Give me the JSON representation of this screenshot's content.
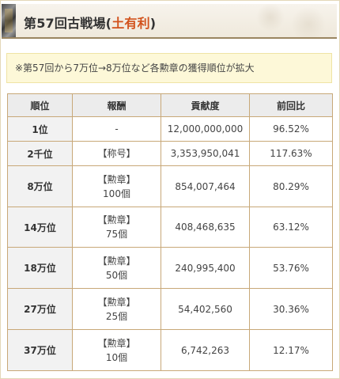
{
  "heading": {
    "title_prefix": "第57回古戦場(",
    "title_accent": "土有利",
    "title_suffix": ")"
  },
  "notice": {
    "text": "※第57回から7万位→8万位など各勲章の獲得順位が拡大"
  },
  "table": {
    "headers": [
      "順位",
      "報酬",
      "貢献度",
      "前回比"
    ],
    "rows": [
      {
        "rank": "1位",
        "reward_line1": "-",
        "reward_line2": "",
        "contribution": "12,000,000,000",
        "change": "96.52%",
        "change_trend": "down"
      },
      {
        "rank": "2千位",
        "reward_line1": "【称号】",
        "reward_line2": "",
        "contribution": "3,353,950,041",
        "change": "117.63%",
        "change_trend": "up"
      },
      {
        "rank": "8万位",
        "reward_line1": "【勲章】",
        "reward_line2": "100個",
        "contribution": "854,007,464",
        "change": "80.29%",
        "change_trend": "down"
      },
      {
        "rank": "14万位",
        "reward_line1": "【勲章】",
        "reward_line2": "75個",
        "contribution": "408,468,635",
        "change": "63.12%",
        "change_trend": "down"
      },
      {
        "rank": "18万位",
        "reward_line1": "【勲章】",
        "reward_line2": "50個",
        "contribution": "240,995,400",
        "change": "53.76%",
        "change_trend": "down"
      },
      {
        "rank": "27万位",
        "reward_line1": "【勲章】",
        "reward_line2": "25個",
        "contribution": "54,402,560",
        "change": "30.36%",
        "change_trend": "down"
      },
      {
        "rank": "37万位",
        "reward_line1": "【勲章】",
        "reward_line2": "10個",
        "contribution": "6,742,263",
        "change": "12.17%",
        "change_trend": "down"
      }
    ]
  },
  "colors": {
    "accent": "#d2521c",
    "increase": "#e02424",
    "decrease": "#2222cc",
    "table_border": "#c8a878",
    "notice_background": "#fdf8d8"
  }
}
